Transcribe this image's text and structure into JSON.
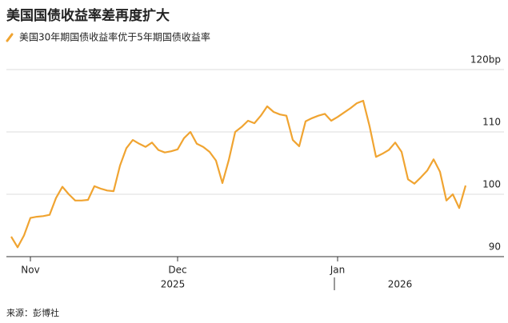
{
  "chart_data": {
    "type": "line",
    "title": "美国国债收益率差再度扩大",
    "categories": [
      null,
      null,
      null,
      "Nov",
      null,
      null,
      null,
      null,
      null,
      null,
      null,
      null,
      null,
      null,
      null,
      null,
      null,
      null,
      null,
      null,
      null,
      null,
      null,
      null,
      null,
      null,
      "Dec",
      null,
      null,
      null,
      null,
      null,
      null,
      null,
      null,
      null,
      null,
      null,
      null,
      null,
      null,
      null,
      null,
      null,
      null,
      null,
      null,
      null,
      null,
      null,
      null,
      "Jan",
      null,
      null,
      null,
      null,
      null,
      null,
      null,
      null,
      null,
      null,
      null,
      null,
      null,
      null,
      null,
      null,
      null,
      null,
      null,
      null
    ],
    "series": [
      {
        "name": "美国30年期国债收益率优于5年期国债收益率",
        "color": "#f0a431",
        "values": [
          93.2,
          91.5,
          93.4,
          96.2,
          96.4,
          96.5,
          96.7,
          99.4,
          101.2,
          100.0,
          99.0,
          99.0,
          99.1,
          101.3,
          100.9,
          100.6,
          100.5,
          104.6,
          107.4,
          108.7,
          108.1,
          107.6,
          108.3,
          107.1,
          106.7,
          106.9,
          107.2,
          109.0,
          110.0,
          108.1,
          107.6,
          106.8,
          105.4,
          101.8,
          105.5,
          110.0,
          110.8,
          111.8,
          111.4,
          112.6,
          114.1,
          113.2,
          112.8,
          112.6,
          108.7,
          107.7,
          111.7,
          112.2,
          112.6,
          112.9,
          111.8,
          112.4,
          113.1,
          113.8,
          114.6,
          115.0,
          110.9,
          106.0,
          106.5,
          107.1,
          108.3,
          106.8,
          102.4,
          101.7,
          102.7,
          103.8,
          105.6,
          103.6,
          99.0,
          100.0,
          97.8,
          101.4
        ]
      }
    ],
    "years": [
      "2025",
      "2026"
    ],
    "ylim": [
      90,
      120
    ],
    "yticks": [
      90,
      100,
      110,
      {
        "value": 120,
        "label": "120bp"
      }
    ],
    "grid": true,
    "source": "来源：彭博社"
  }
}
